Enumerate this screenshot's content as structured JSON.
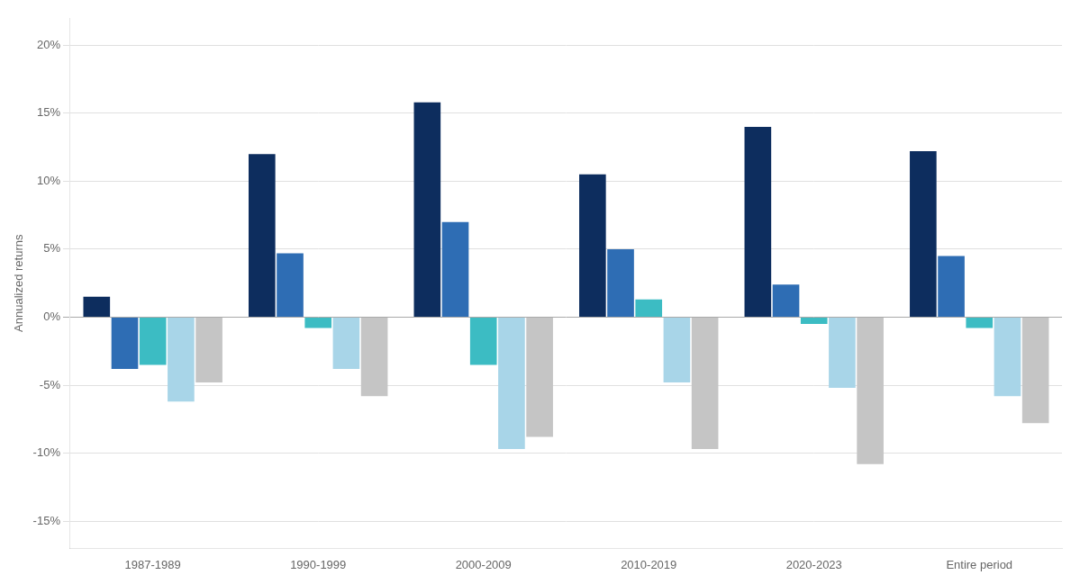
{
  "chart_data": {
    "type": "bar",
    "categories": [
      "1987-1989",
      "1990-1999",
      "2000-2009",
      "2010-2019",
      "2020-2023",
      "Entire period"
    ],
    "series": [
      {
        "color": "#0d2d5e",
        "values": [
          1.5,
          12.0,
          15.8,
          10.5,
          14.0,
          12.2
        ]
      },
      {
        "color": "#2e6db4",
        "values": [
          -3.8,
          4.7,
          7.0,
          5.0,
          2.4,
          4.5
        ]
      },
      {
        "color": "#3cbcc3",
        "values": [
          -3.5,
          -0.8,
          -3.5,
          1.3,
          -0.5,
          -0.8
        ]
      },
      {
        "color": "#a8d5e8",
        "values": [
          -6.2,
          -3.8,
          -9.7,
          -4.8,
          -5.2,
          -5.8
        ]
      },
      {
        "color": "#c5c5c5",
        "values": [
          -4.8,
          -5.8,
          -8.8,
          -9.7,
          -10.8,
          -7.8
        ]
      }
    ],
    "ylabel": "Annualized returns",
    "ylim": [
      -17,
      22
    ],
    "yticks": [
      {
        "value": -15,
        "label": "-15%"
      },
      {
        "value": -10,
        "label": "-10%"
      },
      {
        "value": -5,
        "label": "-5%"
      },
      {
        "value": 0,
        "label": "0%"
      },
      {
        "value": 5,
        "label": "5%"
      },
      {
        "value": 10,
        "label": "10%"
      },
      {
        "value": 15,
        "label": "15%"
      },
      {
        "value": 20,
        "label": "20%"
      }
    ],
    "grid": true
  }
}
